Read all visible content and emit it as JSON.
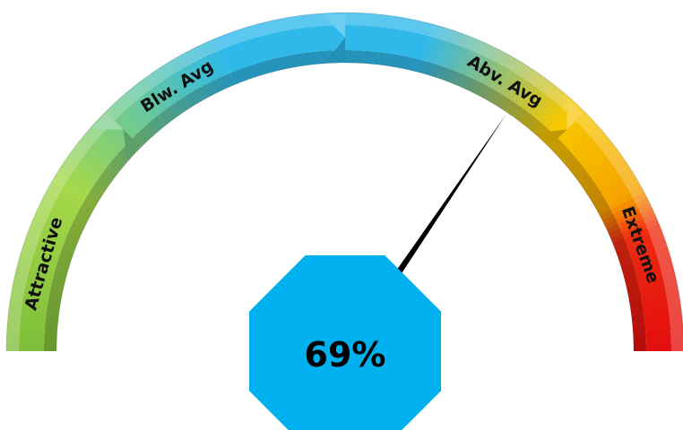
{
  "chart_data": {
    "type": "gauge",
    "value": 69,
    "value_label": "69%",
    "range": [
      0,
      100
    ],
    "segments": [
      {
        "label": "Attractive",
        "from": 0,
        "to": 25,
        "color": "#8cc63f"
      },
      {
        "label": "Blw. Avg",
        "from": 25,
        "to": 50,
        "color": "#29b6e8"
      },
      {
        "label": "Abv. Avg",
        "from": 50,
        "to": 75,
        "color": "#f5c400"
      },
      {
        "label": "Extreme",
        "from": 75,
        "to": 100,
        "color": "#e8150f"
      }
    ],
    "gradient_stops": [
      {
        "at": 0,
        "color": "#7fbe3a"
      },
      {
        "at": 17,
        "color": "#a5d84a"
      },
      {
        "at": 38,
        "color": "#2fb8ea"
      },
      {
        "at": 58,
        "color": "#2fb8ea"
      },
      {
        "at": 74,
        "color": "#f7c800"
      },
      {
        "at": 84,
        "color": "#f5a300"
      },
      {
        "at": 88,
        "color": "#ee2a10"
      },
      {
        "at": 100,
        "color": "#e30e0e"
      }
    ],
    "center_badge_color": "#00b0ef",
    "needle_color": "#000000"
  }
}
